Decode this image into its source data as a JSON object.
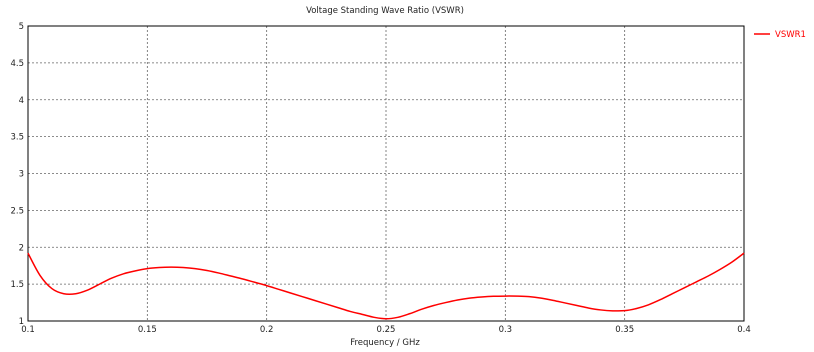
{
  "chart_data": {
    "type": "line",
    "title": "Voltage Standing Wave Ratio (VSWR)",
    "xlabel": "Frequency / GHz",
    "ylabel": "",
    "xlim": [
      0.1,
      0.4
    ],
    "ylim": [
      1,
      5
    ],
    "xticks": [
      "0.1",
      "0.15",
      "0.2",
      "0.25",
      "0.3",
      "0.35",
      "0.4"
    ],
    "yticks": [
      "1",
      "1.5",
      "2",
      "2.5",
      "3",
      "3.5",
      "4",
      "4.5",
      "5"
    ],
    "grid": true,
    "legend_position": "top-right",
    "series": [
      {
        "name": "VSWR1",
        "color": "#ff0000",
        "points": [
          [
            0.1,
            1.92
          ],
          [
            0.105,
            1.62
          ],
          [
            0.11,
            1.44
          ],
          [
            0.115,
            1.37
          ],
          [
            0.12,
            1.37
          ],
          [
            0.125,
            1.42
          ],
          [
            0.13,
            1.5
          ],
          [
            0.135,
            1.58
          ],
          [
            0.14,
            1.64
          ],
          [
            0.145,
            1.68
          ],
          [
            0.15,
            1.71
          ],
          [
            0.155,
            1.725
          ],
          [
            0.16,
            1.73
          ],
          [
            0.165,
            1.725
          ],
          [
            0.17,
            1.71
          ],
          [
            0.175,
            1.685
          ],
          [
            0.18,
            1.65
          ],
          [
            0.185,
            1.61
          ],
          [
            0.19,
            1.57
          ],
          [
            0.195,
            1.525
          ],
          [
            0.2,
            1.48
          ],
          [
            0.205,
            1.43
          ],
          [
            0.21,
            1.38
          ],
          [
            0.215,
            1.33
          ],
          [
            0.22,
            1.28
          ],
          [
            0.225,
            1.23
          ],
          [
            0.23,
            1.18
          ],
          [
            0.235,
            1.13
          ],
          [
            0.24,
            1.09
          ],
          [
            0.245,
            1.05
          ],
          [
            0.25,
            1.03
          ],
          [
            0.255,
            1.05
          ],
          [
            0.26,
            1.1
          ],
          [
            0.265,
            1.16
          ],
          [
            0.27,
            1.21
          ],
          [
            0.275,
            1.25
          ],
          [
            0.28,
            1.285
          ],
          [
            0.285,
            1.31
          ],
          [
            0.29,
            1.325
          ],
          [
            0.295,
            1.335
          ],
          [
            0.3,
            1.338
          ],
          [
            0.305,
            1.337
          ],
          [
            0.31,
            1.33
          ],
          [
            0.315,
            1.31
          ],
          [
            0.32,
            1.28
          ],
          [
            0.325,
            1.245
          ],
          [
            0.33,
            1.21
          ],
          [
            0.335,
            1.175
          ],
          [
            0.34,
            1.15
          ],
          [
            0.345,
            1.138
          ],
          [
            0.35,
            1.14
          ],
          [
            0.355,
            1.17
          ],
          [
            0.36,
            1.22
          ],
          [
            0.365,
            1.29
          ],
          [
            0.37,
            1.37
          ],
          [
            0.375,
            1.45
          ],
          [
            0.38,
            1.53
          ],
          [
            0.385,
            1.61
          ],
          [
            0.39,
            1.7
          ],
          [
            0.395,
            1.8
          ],
          [
            0.4,
            1.92
          ]
        ]
      }
    ]
  }
}
